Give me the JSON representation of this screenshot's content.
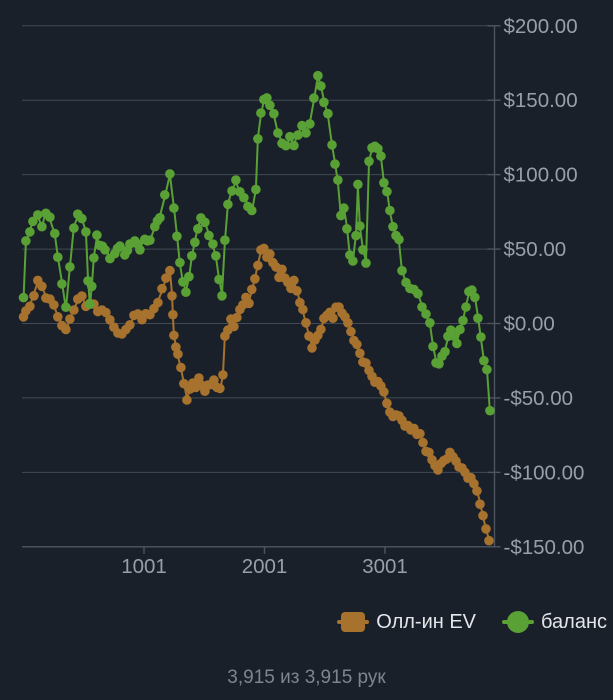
{
  "chart": {
    "background": "#1a202a",
    "grid_color": "#414a55",
    "axis_color": "#4d5560",
    "text_color": "#979fa9",
    "footer_color": "#7d858f",
    "legend_text_color": "#e3e6ea",
    "y_ticks": [
      {
        "label": "$200.00",
        "value": 200
      },
      {
        "label": "$150.00",
        "value": 150
      },
      {
        "label": "$100.00",
        "value": 100
      },
      {
        "label": "$50.00",
        "value": 50
      },
      {
        "label": "$0.00",
        "value": 0
      },
      {
        "label": "-$50.00",
        "value": -50
      },
      {
        "label": "-$100.00",
        "value": -100
      },
      {
        "label": "-$150.00",
        "value": -150
      }
    ],
    "x_ticks": [
      {
        "label": "1001",
        "value": 1001
      },
      {
        "label": "2001",
        "value": 2001
      },
      {
        "label": "3001",
        "value": 3001
      }
    ],
    "legend": [
      {
        "label": "Олл-ин EV",
        "shape": "square"
      },
      {
        "label": "баланс",
        "shape": "circle"
      }
    ],
    "footer": "3,915 из 3,915 рук"
  },
  "chart_data": {
    "type": "scatter",
    "title": "",
    "xlabel": "",
    "ylabel": "",
    "x_range": [
      1,
      3915
    ],
    "y_range": [
      -150,
      200
    ],
    "grid": true,
    "legend_position": "bottom-right",
    "x_unit": "hands",
    "y_unit": "USD",
    "series": [
      {
        "name": "Олл-ин EV",
        "color": "#a6722e",
        "points": [
          [
            1,
            3
          ],
          [
            21,
            8
          ],
          [
            54,
            12
          ],
          [
            87,
            20
          ],
          [
            120,
            28
          ],
          [
            154,
            25
          ],
          [
            187,
            18
          ],
          [
            220,
            15
          ],
          [
            253,
            12
          ],
          [
            286,
            5
          ],
          [
            320,
            0
          ],
          [
            353,
            -5
          ],
          [
            386,
            3
          ],
          [
            419,
            10
          ],
          [
            452,
            15
          ],
          [
            486,
            18
          ],
          [
            519,
            12
          ],
          [
            552,
            15
          ],
          [
            585,
            12
          ],
          [
            618,
            8
          ],
          [
            652,
            10
          ],
          [
            685,
            6
          ],
          [
            718,
            2
          ],
          [
            751,
            -2
          ],
          [
            784,
            -5
          ],
          [
            818,
            -8
          ],
          [
            851,
            -4
          ],
          [
            884,
            0
          ],
          [
            917,
            4
          ],
          [
            950,
            6
          ],
          [
            984,
            3
          ],
          [
            1017,
            8
          ],
          [
            1050,
            5
          ],
          [
            1083,
            10
          ],
          [
            1116,
            15
          ],
          [
            1150,
            22
          ],
          [
            1183,
            30
          ],
          [
            1216,
            36
          ],
          [
            1233,
            20
          ],
          [
            1241,
            5
          ],
          [
            1249,
            -8
          ],
          [
            1266,
            -15
          ],
          [
            1282,
            -22
          ],
          [
            1307,
            -30
          ],
          [
            1332,
            -40
          ],
          [
            1357,
            -50
          ],
          [
            1382,
            -45
          ],
          [
            1407,
            -40
          ],
          [
            1432,
            -42
          ],
          [
            1457,
            -38
          ],
          [
            1481,
            -42
          ],
          [
            1506,
            -45
          ],
          [
            1531,
            -40
          ],
          [
            1556,
            -42
          ],
          [
            1581,
            -38
          ],
          [
            1606,
            -42
          ],
          [
            1631,
            -45
          ],
          [
            1656,
            -35
          ],
          [
            1672,
            -8
          ],
          [
            1697,
            -3
          ],
          [
            1722,
            2
          ],
          [
            1747,
            -2
          ],
          [
            1772,
            5
          ],
          [
            1797,
            8
          ],
          [
            1822,
            12
          ],
          [
            1847,
            18
          ],
          [
            1872,
            15
          ],
          [
            1896,
            22
          ],
          [
            1921,
            30
          ],
          [
            1946,
            40
          ],
          [
            1971,
            48
          ],
          [
            1996,
            50
          ],
          [
            2021,
            45
          ],
          [
            2046,
            48
          ],
          [
            2071,
            40
          ],
          [
            2096,
            38
          ],
          [
            2121,
            32
          ],
          [
            2146,
            35
          ],
          [
            2170,
            30
          ],
          [
            2195,
            28
          ],
          [
            2220,
            25
          ],
          [
            2245,
            28
          ],
          [
            2270,
            22
          ],
          [
            2295,
            15
          ],
          [
            2320,
            8
          ],
          [
            2345,
            0
          ],
          [
            2370,
            -8
          ],
          [
            2395,
            -15
          ],
          [
            2420,
            -12
          ],
          [
            2444,
            -8
          ],
          [
            2469,
            -3
          ],
          [
            2494,
            2
          ],
          [
            2519,
            5
          ],
          [
            2544,
            8
          ],
          [
            2569,
            5
          ],
          [
            2594,
            10
          ],
          [
            2619,
            11
          ],
          [
            2644,
            8
          ],
          [
            2669,
            3
          ],
          [
            2693,
            0
          ],
          [
            2718,
            -5
          ],
          [
            2743,
            -10
          ],
          [
            2768,
            -15
          ],
          [
            2793,
            -20
          ],
          [
            2818,
            -25
          ],
          [
            2843,
            -28
          ],
          [
            2868,
            -32
          ],
          [
            2893,
            -35
          ],
          [
            2917,
            -38
          ],
          [
            2942,
            -40
          ],
          [
            2967,
            -42
          ],
          [
            2992,
            -45
          ],
          [
            3017,
            -55
          ],
          [
            3042,
            -60
          ],
          [
            3067,
            -62
          ],
          [
            3092,
            -60
          ],
          [
            3117,
            -63
          ],
          [
            3142,
            -65
          ],
          [
            3167,
            -68
          ],
          [
            3192,
            -70
          ],
          [
            3216,
            -72
          ],
          [
            3241,
            -70
          ],
          [
            3266,
            -73
          ],
          [
            3291,
            -75
          ],
          [
            3316,
            -80
          ],
          [
            3341,
            -85
          ],
          [
            3366,
            -88
          ],
          [
            3391,
            -92
          ],
          [
            3416,
            -95
          ],
          [
            3441,
            -97
          ],
          [
            3466,
            -95
          ],
          [
            3490,
            -92
          ],
          [
            3515,
            -90
          ],
          [
            3540,
            -88
          ],
          [
            3565,
            -90
          ],
          [
            3590,
            -92
          ],
          [
            3615,
            -95
          ],
          [
            3640,
            -98
          ],
          [
            3665,
            -100
          ],
          [
            3690,
            -103
          ],
          [
            3714,
            -105
          ],
          [
            3739,
            -108
          ],
          [
            3764,
            -112
          ],
          [
            3789,
            -120
          ],
          [
            3814,
            -130
          ],
          [
            3839,
            -138
          ],
          [
            3864,
            -145
          ]
        ]
      },
      {
        "name": "баланс",
        "color": "#5aa135",
        "points": [
          [
            1,
            16
          ],
          [
            21,
            55
          ],
          [
            54,
            62
          ],
          [
            79,
            70
          ],
          [
            120,
            72
          ],
          [
            154,
            65
          ],
          [
            187,
            75
          ],
          [
            220,
            70
          ],
          [
            261,
            60
          ],
          [
            286,
            45
          ],
          [
            320,
            28
          ],
          [
            353,
            10
          ],
          [
            386,
            38
          ],
          [
            419,
            65
          ],
          [
            452,
            72
          ],
          [
            486,
            70
          ],
          [
            519,
            62
          ],
          [
            536,
            30
          ],
          [
            552,
            12
          ],
          [
            568,
            25
          ],
          [
            585,
            45
          ],
          [
            610,
            58
          ],
          [
            635,
            52
          ],
          [
            677,
            50
          ],
          [
            718,
            45
          ],
          [
            759,
            46
          ],
          [
            801,
            52
          ],
          [
            842,
            47
          ],
          [
            884,
            52
          ],
          [
            925,
            55
          ],
          [
            967,
            50
          ],
          [
            1008,
            58
          ],
          [
            1050,
            55
          ],
          [
            1091,
            65
          ],
          [
            1133,
            72
          ],
          [
            1174,
            85
          ],
          [
            1216,
            100
          ],
          [
            1249,
            78
          ],
          [
            1274,
            60
          ],
          [
            1299,
            40
          ],
          [
            1324,
            28
          ],
          [
            1349,
            22
          ],
          [
            1374,
            30
          ],
          [
            1398,
            45
          ],
          [
            1423,
            55
          ],
          [
            1448,
            65
          ],
          [
            1473,
            70
          ],
          [
            1506,
            68
          ],
          [
            1540,
            60
          ],
          [
            1573,
            52
          ],
          [
            1598,
            45
          ],
          [
            1623,
            30
          ],
          [
            1648,
            20
          ],
          [
            1672,
            55
          ],
          [
            1697,
            80
          ],
          [
            1731,
            90
          ],
          [
            1764,
            95
          ],
          [
            1797,
            88
          ],
          [
            1830,
            85
          ],
          [
            1863,
            80
          ],
          [
            1896,
            75
          ],
          [
            1930,
            90
          ],
          [
            1946,
            125
          ],
          [
            1971,
            140
          ],
          [
            1996,
            150
          ],
          [
            2021,
            152
          ],
          [
            2046,
            148
          ],
          [
            2079,
            140
          ],
          [
            2112,
            128
          ],
          [
            2146,
            122
          ],
          [
            2179,
            118
          ],
          [
            2212,
            125
          ],
          [
            2245,
            120
          ],
          [
            2278,
            128
          ],
          [
            2312,
            132
          ],
          [
            2345,
            128
          ],
          [
            2378,
            135
          ],
          [
            2411,
            150
          ],
          [
            2444,
            166
          ],
          [
            2469,
            160
          ],
          [
            2494,
            150
          ],
          [
            2527,
            140
          ],
          [
            2561,
            120
          ],
          [
            2586,
            108
          ],
          [
            2610,
            95
          ],
          [
            2635,
            72
          ],
          [
            2660,
            78
          ],
          [
            2685,
            65
          ],
          [
            2710,
            45
          ],
          [
            2735,
            42
          ],
          [
            2760,
            60
          ],
          [
            2776,
            92
          ],
          [
            2793,
            65
          ],
          [
            2818,
            50
          ],
          [
            2843,
            42
          ],
          [
            2868,
            108
          ],
          [
            2893,
            118
          ],
          [
            2917,
            120
          ],
          [
            2942,
            116
          ],
          [
            2967,
            112
          ],
          [
            2992,
            95
          ],
          [
            3017,
            90
          ],
          [
            3042,
            75
          ],
          [
            3067,
            65
          ],
          [
            3092,
            60
          ],
          [
            3117,
            55
          ],
          [
            3142,
            35
          ],
          [
            3175,
            28
          ],
          [
            3208,
            25
          ],
          [
            3241,
            22
          ],
          [
            3274,
            20
          ],
          [
            3308,
            12
          ],
          [
            3341,
            5
          ],
          [
            3374,
            0
          ],
          [
            3399,
            -15
          ],
          [
            3424,
            -25
          ],
          [
            3449,
            -28
          ],
          [
            3474,
            -22
          ],
          [
            3499,
            -18
          ],
          [
            3523,
            -10
          ],
          [
            3548,
            -5
          ],
          [
            3573,
            -8
          ],
          [
            3598,
            -12
          ],
          [
            3623,
            -5
          ],
          [
            3648,
            2
          ],
          [
            3673,
            12
          ],
          [
            3697,
            20
          ],
          [
            3722,
            22
          ],
          [
            3747,
            18
          ],
          [
            3772,
            5
          ],
          [
            3797,
            -10
          ],
          [
            3822,
            -25
          ],
          [
            3847,
            -30
          ],
          [
            3872,
            -60
          ]
        ]
      }
    ]
  }
}
